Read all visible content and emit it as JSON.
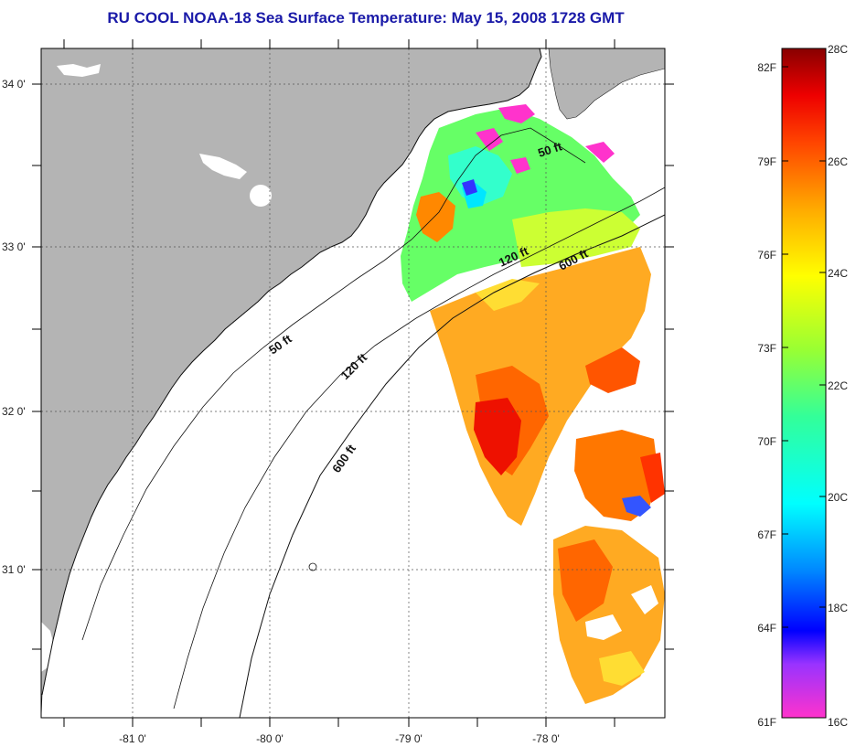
{
  "title": "RU COOL  NOAA-18  Sea Surface Temperature:  May 15, 2008 1728 GMT",
  "lat_labels": [
    "34 0'",
    "33 0'",
    "32 0'",
    "31 0'"
  ],
  "lon_labels": [
    "-81 0'",
    "-80 0'",
    "-79 0'",
    "-78 0'"
  ],
  "contours": {
    "c50_north": "50 ft",
    "c120_north": "120 ft",
    "c600_north": "600 ft",
    "c50_mid": "50 ft",
    "c120_mid": "120 ft",
    "c600_mid": "600 ft"
  },
  "colorbar": {
    "fahrenheit": [
      "82F",
      "79F",
      "76F",
      "73F",
      "70F",
      "67F",
      "64F",
      "61F"
    ],
    "celsius": [
      "28C",
      "26C",
      "24C",
      "22C",
      "20C",
      "18C",
      "16C"
    ]
  },
  "colors": {
    "land": "#b4b4b4",
    "ocean": "#ffffff",
    "title": "#1a1aa8"
  }
}
